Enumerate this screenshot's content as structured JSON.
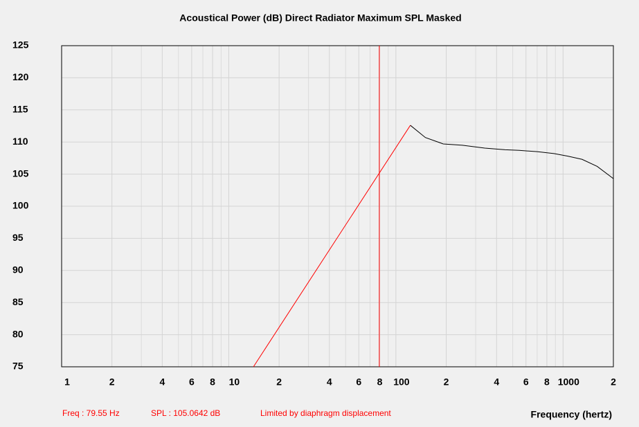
{
  "chart_data": {
    "type": "line",
    "title": "Acoustical Power (dB)   Direct Radiator   Maximum SPL   Masked",
    "x_label": "Frequency (hertz)",
    "log_x": true,
    "xlim": [
      1,
      2000
    ],
    "ylim": [
      75,
      125
    ],
    "xticks": [
      1,
      {
        "value": 2,
        "label": "2"
      },
      {
        "value": 4,
        "label": "4"
      },
      {
        "value": 6,
        "label": "6"
      },
      {
        "value": 8,
        "label": "8"
      },
      10,
      {
        "value": 20,
        "label": "2"
      },
      {
        "value": 40,
        "label": "4"
      },
      {
        "value": 60,
        "label": "6"
      },
      {
        "value": 80,
        "label": "8"
      },
      100,
      {
        "value": 200,
        "label": "2"
      },
      {
        "value": 400,
        "label": "4"
      },
      {
        "value": 600,
        "label": "6"
      },
      {
        "value": 800,
        "label": "8"
      },
      1000,
      {
        "value": 2000,
        "label": "2"
      }
    ],
    "xminor_ticks": [
      3,
      5,
      7,
      9,
      30,
      50,
      70,
      90,
      300,
      500,
      700,
      900
    ],
    "yticks": [
      75,
      80,
      85,
      90,
      95,
      100,
      105,
      110,
      115,
      120,
      125
    ],
    "grid": true,
    "series": [
      {
        "color": "#ff0000",
        "x": [
          14.05,
          122
        ],
        "values": [
          75,
          112.6
        ]
      },
      {
        "color": "#000000",
        "x": [
          122,
          150,
          192,
          250,
          340,
          450,
          547,
          700,
          882,
          1067,
          1300,
          1600,
          2000
        ],
        "values": [
          112.6,
          110.7,
          109.7,
          109.5,
          109.05,
          108.8,
          108.7,
          108.5,
          108.2,
          107.8,
          107.3,
          106.2,
          104.3
        ]
      }
    ],
    "cursor": {
      "x": 79.55,
      "y": 105.0642,
      "color": "#ff0000"
    },
    "status": [
      "Freq : 79.55 Hz",
      "SPL : 105.0642 dB",
      "Limited by diaphragm displacement"
    ]
  }
}
